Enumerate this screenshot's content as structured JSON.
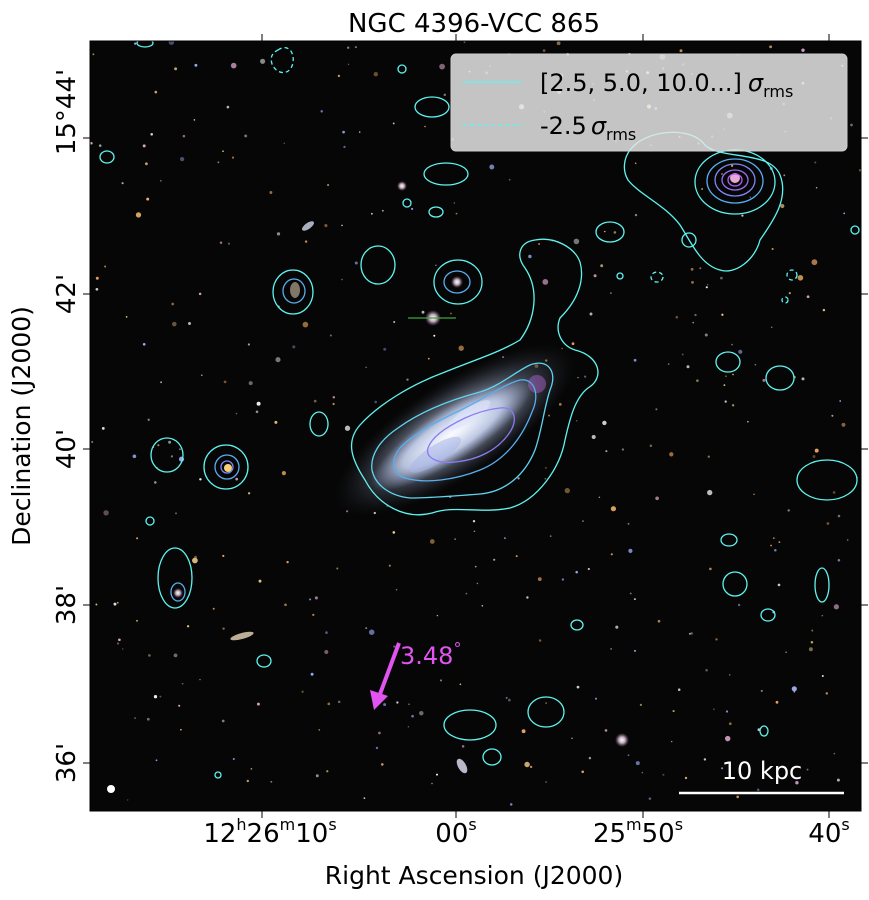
{
  "figure": {
    "title": "NGC 4396-VCC 865",
    "xlabel": "Right Ascension (J2000)",
    "ylabel": "Declination (J2000)"
  },
  "axes": {
    "x_ticks": [
      {
        "pre": "12",
        "h": "h",
        "mid": "26",
        "m": "m",
        "num": "10",
        "s": "s"
      },
      {
        "pre": "",
        "h": "",
        "mid": "",
        "m": "",
        "num": "00",
        "s": "s"
      },
      {
        "pre": "",
        "h": "",
        "mid": "25",
        "m": "m",
        "num": "50",
        "s": "s"
      },
      {
        "pre": "",
        "h": "",
        "mid": "",
        "m": "",
        "num": "40",
        "s": "s"
      }
    ],
    "y_ticks": [
      "15°44'",
      "42'",
      "40'",
      "38'",
      "36'"
    ]
  },
  "legend": {
    "position": "upper-right",
    "entries": [
      {
        "label": "[2.5, 5.0, 10.0...]",
        "sigma": "σ",
        "sub": "rms",
        "style": "solid",
        "color": "#5ff4f0"
      },
      {
        "label": "-2.5",
        "sigma": "σ",
        "sub": "rms",
        "style": "dashed",
        "color": "#5ff4f0"
      }
    ]
  },
  "annotations": {
    "angle_label": "3.48",
    "angle_degree": "°",
    "scalebar_label": "10 kpc",
    "arrow_color": "#e055f0",
    "contour_color": "#5ff4f0",
    "inner_contour_colors": [
      "#58aef0",
      "#7d87f2",
      "#a065f0"
    ]
  }
}
